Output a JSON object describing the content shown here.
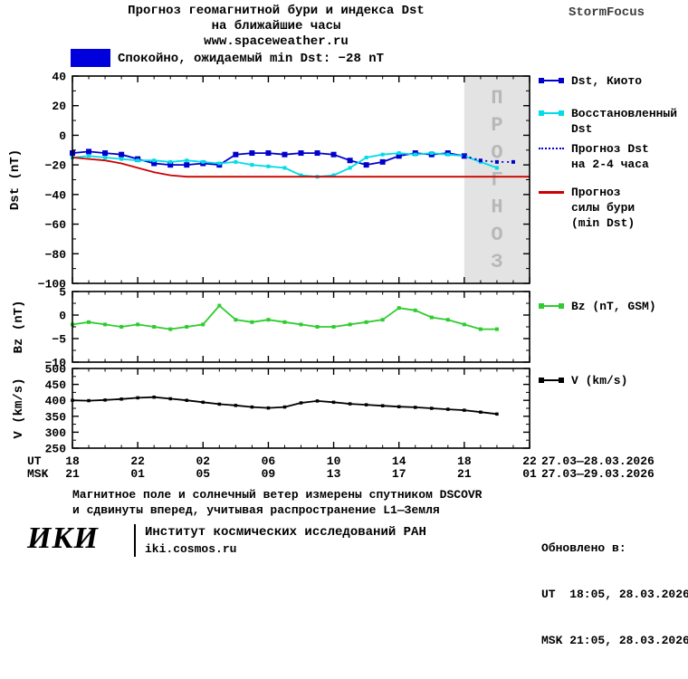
{
  "header": {
    "title_line1": "Прогноз геомагнитной бури и индекса Dst",
    "title_line2": "на ближайшие часы",
    "site": "www.spaceweather.ru",
    "brand": "StormFocus"
  },
  "status": {
    "label": "Спокойно, ожидаемый min Dst: −28 nT",
    "box_color": "#0000dd"
  },
  "axis": {
    "rows": [
      {
        "label": "UT",
        "ticks": [
          "18",
          "22",
          "02",
          "06",
          "10",
          "14",
          "18",
          "22"
        ],
        "date_range": "27.03—28.03.2026"
      },
      {
        "label": "MSK",
        "ticks": [
          "21",
          "01",
          "05",
          "09",
          "13",
          "17",
          "21",
          "01"
        ],
        "date_range": "27.03—29.03.2026"
      }
    ]
  },
  "legends": {
    "dst_kyoto": "Dst, Киото",
    "restored": "Восстановленный\nDst",
    "forecast": "Прогноз Dst\nна 2-4 часа",
    "storm": "Прогноз\nсилы бури\n(min Dst)",
    "bz": "Bz (nT, GSM)",
    "v": "V (km/s)"
  },
  "footer": {
    "note_line1": "Магнитное поле и солнечный ветер измерены спутником DSCOVR",
    "note_line2": "и сдвинуты вперед, учитывая распространение L1—Земля",
    "updated_label": "Обновлено в:",
    "updated_ut": "UT  18:05, 28.03.2026",
    "updated_msk": "MSK 21:05, 28.03.2026",
    "logo": "ИКИ",
    "institute": "Институт космических исследований РАН",
    "site": "iki.cosmos.ru"
  },
  "chart_data": [
    {
      "type": "line",
      "ylabel": "Dst (nT)",
      "ylim": [
        -100,
        40
      ],
      "yticks": [
        40,
        20,
        0,
        -20,
        -40,
        -60,
        -80,
        -100
      ],
      "x_hours_range": [
        0,
        28
      ],
      "xtick_hours": [
        0,
        4,
        8,
        12,
        16,
        20,
        24,
        28
      ],
      "xtick_labels_ut": [
        "18",
        "22",
        "02",
        "06",
        "10",
        "14",
        "18",
        "22"
      ],
      "forecast_band": {
        "from_hour": 24,
        "to_hour": 28,
        "label": "ПРОГНОЗ",
        "bg": "#e3e3e3",
        "text_color": "#b8b8b8"
      },
      "series": [
        {
          "name": "Dst, Киото",
          "color": "#0000cd",
          "marker": "square",
          "marker_size": 6,
          "x": [
            0,
            1,
            2,
            3,
            4,
            5,
            6,
            7,
            8,
            9,
            10,
            11,
            12,
            13,
            14,
            15,
            16,
            17,
            18,
            19,
            20,
            21,
            22,
            23,
            24
          ],
          "y": [
            -12,
            -11,
            -12,
            -13,
            -16,
            -19,
            -20,
            -20,
            -19,
            -20,
            -13,
            -12,
            -12,
            -13,
            -12,
            -12,
            -13,
            -17,
            -20,
            -18,
            -14,
            -12,
            -13,
            -12,
            -14
          ]
        },
        {
          "name": "Восстановленный Dst",
          "color": "#00dce8",
          "marker": "square",
          "marker_size": 4,
          "x": [
            0,
            1,
            2,
            3,
            4,
            5,
            6,
            7,
            8,
            9,
            10,
            11,
            12,
            13,
            14,
            15,
            16,
            17,
            18,
            19,
            20,
            21,
            22,
            23,
            24,
            25,
            26
          ],
          "y": [
            -15,
            -14,
            -15,
            -16,
            -17,
            -17,
            -18,
            -17,
            -18,
            -19,
            -18,
            -20,
            -21,
            -22,
            -27,
            -28,
            -27,
            -22,
            -15,
            -13,
            -12,
            -13,
            -12,
            -13,
            -14,
            -18,
            -22
          ]
        },
        {
          "name": "Прогноз Dst на 2-4 часа",
          "color": "#0000cd",
          "dash": "dotted",
          "marker": "square",
          "marker_size": 4,
          "x": [
            24,
            25,
            26,
            27
          ],
          "y": [
            -14,
            -17,
            -18,
            -18
          ]
        },
        {
          "name": "Прогноз силы бури (min Dst)",
          "color": "#cc0000",
          "x": [
            0,
            1,
            2,
            3,
            4,
            5,
            6,
            7,
            8,
            28
          ],
          "y": [
            -15,
            -16,
            -17,
            -19,
            -22,
            -25,
            -27,
            -28,
            -28,
            -28
          ]
        }
      ]
    },
    {
      "type": "line",
      "ylabel": "Bz (nT)",
      "ylim": [
        -10,
        5
      ],
      "yticks": [
        5,
        0,
        -5,
        -10
      ],
      "x_hours_range": [
        0,
        28
      ],
      "xtick_hours": [
        0,
        4,
        8,
        12,
        16,
        20,
        24,
        28
      ],
      "series": [
        {
          "name": "Bz (nT, GSM)",
          "color": "#2ecc2e",
          "marker": "square",
          "marker_size": 4,
          "x": [
            0,
            1,
            2,
            3,
            4,
            5,
            6,
            7,
            8,
            9,
            10,
            11,
            12,
            13,
            14,
            15,
            16,
            17,
            18,
            19,
            20,
            21,
            22,
            23,
            24,
            25,
            26
          ],
          "y": [
            -2,
            -1.5,
            -2,
            -2.5,
            -2,
            -2.5,
            -3,
            -2.5,
            -2,
            2,
            -1,
            -1.5,
            -1,
            -1.5,
            -2,
            -2.5,
            -2.5,
            -2,
            -1.5,
            -1,
            1.5,
            1,
            -0.5,
            -1,
            -2,
            -3,
            -3
          ]
        }
      ]
    },
    {
      "type": "line",
      "ylabel": "V (km/s)",
      "ylim": [
        250,
        500
      ],
      "yticks": [
        500,
        450,
        400,
        350,
        300,
        250
      ],
      "x_hours_range": [
        0,
        28
      ],
      "xtick_hours": [
        0,
        4,
        8,
        12,
        16,
        20,
        24,
        28
      ],
      "series": [
        {
          "name": "V (km/s)",
          "color": "#000000",
          "marker": "square",
          "marker_size": 3.5,
          "x": [
            0,
            1,
            2,
            3,
            4,
            5,
            6,
            7,
            8,
            9,
            10,
            11,
            12,
            13,
            14,
            15,
            16,
            17,
            18,
            19,
            20,
            21,
            22,
            23,
            24,
            25,
            26
          ],
          "y": [
            400,
            399,
            401,
            404,
            408,
            410,
            405,
            400,
            394,
            388,
            384,
            379,
            376,
            379,
            392,
            398,
            394,
            389,
            386,
            383,
            380,
            378,
            375,
            372,
            369,
            363,
            357
          ]
        }
      ]
    }
  ]
}
